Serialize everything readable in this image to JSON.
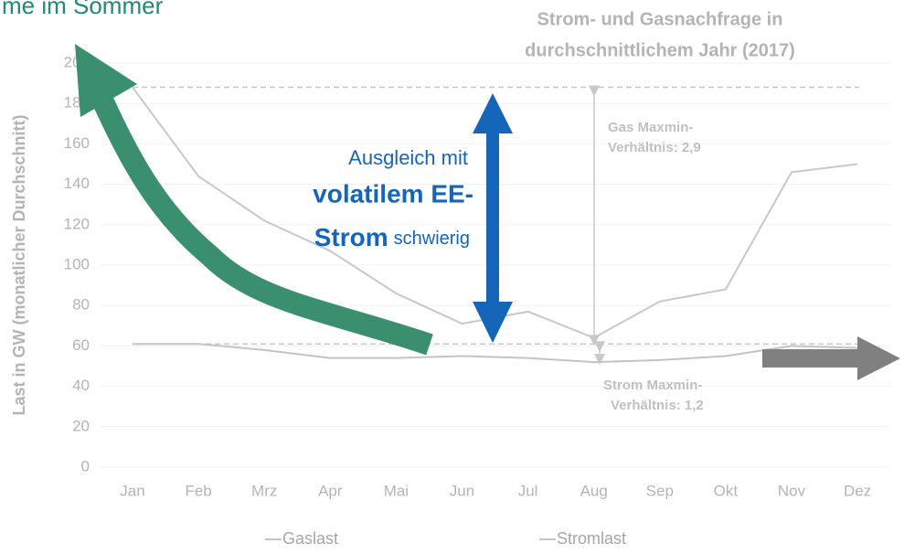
{
  "chart_data": {
    "type": "line",
    "heading": "me im Sommer",
    "title_lines": [
      "Strom- und Gasnachfrage in",
      "durchschnittlichem Jahr (2017)"
    ],
    "y_label": "Last in GW (monatlicher Durchschnitt)",
    "categories": [
      "Jan",
      "Feb",
      "Mrz",
      "Apr",
      "Mai",
      "Jun",
      "Jul",
      "Aug",
      "Sep",
      "Okt",
      "Nov",
      "Dez"
    ],
    "series": [
      {
        "name": "Gaslast",
        "color": "#c8c8c8",
        "values": [
          188,
          144,
          122,
          107,
          86,
          71,
          77,
          64,
          82,
          88,
          146,
          150
        ]
      },
      {
        "name": "Stromlast",
        "color": "#c3c3c3",
        "values": [
          61,
          61,
          58,
          54,
          54,
          55,
          54,
          52,
          53,
          55,
          60,
          59
        ]
      }
    ],
    "reference_lines": [
      188,
      61
    ],
    "ylim": [
      0,
      200
    ],
    "yticks": [
      0,
      20,
      40,
      60,
      80,
      100,
      120,
      140,
      160,
      180,
      200
    ],
    "grid": true,
    "annotations": {
      "gas_ratio": [
        "Gas Maxmin-",
        "Verhältnis: 2,9"
      ],
      "strom_ratio": [
        "Strom Maxmin-",
        "Verhältnis: 1,2"
      ],
      "blue_1": "Ausgleich mit",
      "blue_2": "volatilem EE-",
      "blue_3_bold": "Strom",
      "blue_3_rest": "schwierig"
    }
  }
}
